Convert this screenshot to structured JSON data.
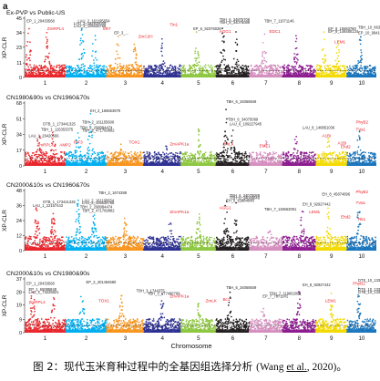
{
  "panel_letter": "a",
  "x_axis_title": "Chromosome",
  "y_axis_label": "XP-CLR",
  "caption": {
    "prefix": "图 2：现代玉米育种过程中的全基因组选择分析",
    "citation_open": "(Wang ",
    "citation_etal": "et al.",
    "citation_close": ", 2020)。"
  },
  "colors": {
    "chromosomes": [
      "#e8262b",
      "#00aeef",
      "#f7941d",
      "#2e3192",
      "#8dc63f",
      "#231f20",
      "#d58fbf",
      "#8c1d8f",
      "#f3d900",
      "#1a75bc"
    ],
    "gene_label": "#ed1c24",
    "snp_label": "#231f20",
    "threshold": "#231f20"
  },
  "chart_data": [
    {
      "type": "scatter",
      "title": "Ex-PVP vs Public-US",
      "ylabel": "XP-CLR",
      "ylim": [
        0,
        45
      ],
      "yticks": [
        0,
        11,
        23,
        34,
        45
      ],
      "x": [
        "1",
        "2",
        "3",
        "4",
        "5",
        "6",
        "7",
        "8",
        "9",
        "10"
      ],
      "threshold": 5,
      "peaks": [
        {
          "chrom": 1,
          "pos": 0.1,
          "value": 40
        },
        {
          "chrom": 1,
          "pos": 0.55,
          "value": 35
        },
        {
          "chrom": 2,
          "pos": 0.4,
          "value": 39
        },
        {
          "chrom": 2,
          "pos": 0.7,
          "value": 35
        },
        {
          "chrom": 3,
          "pos": 0.3,
          "value": 32
        },
        {
          "chrom": 3,
          "pos": 0.75,
          "value": 28
        },
        {
          "chrom": 4,
          "pos": 0.5,
          "value": 30
        },
        {
          "chrom": 5,
          "pos": 0.45,
          "value": 36
        },
        {
          "chrom": 6,
          "pos": 0.2,
          "value": 43
        },
        {
          "chrom": 6,
          "pos": 0.6,
          "value": 40
        },
        {
          "chrom": 7,
          "pos": 0.45,
          "value": 38
        },
        {
          "chrom": 8,
          "pos": 0.4,
          "value": 34
        },
        {
          "chrom": 9,
          "pos": 0.25,
          "value": 36
        },
        {
          "chrom": 9,
          "pos": 0.7,
          "value": 30
        },
        {
          "chrom": 10,
          "pos": 0.45,
          "value": 37
        }
      ],
      "annotations": [
        {
          "text": "EP_1_20433568",
          "kind": "snp",
          "chrom": 1,
          "pos": 0.05,
          "value": 42
        },
        {
          "text": "ZmRPL4",
          "kind": "gene",
          "chrom": 1,
          "pos": 0.55,
          "value": 36
        },
        {
          "text": "LAU_2_161195654",
          "kind": "snp",
          "chrom": 2,
          "pos": 0.3,
          "value": 42
        },
        {
          "text": "LAU_2_122916048",
          "kind": "snp",
          "chrom": 2,
          "pos": 0.2,
          "value": 40
        },
        {
          "text": "LAU_2_105636768",
          "kind": "snp",
          "chrom": 2,
          "pos": 0.2,
          "value": 38
        },
        {
          "text": "SR7",
          "kind": "gene",
          "chrom": 2,
          "pos": 0.9,
          "value": 36
        },
        {
          "text": "EP_3_...",
          "kind": "snp",
          "chrom": 3,
          "pos": 0.2,
          "value": 33
        },
        {
          "text": "ZmC2H",
          "kind": "gene",
          "chrom": 3,
          "pos": 0.85,
          "value": 30
        },
        {
          "text": "Tin1",
          "kind": "gene",
          "chrom": 4,
          "pos": 0.7,
          "value": 39
        },
        {
          "text": "EP_5_92376028",
          "kind": "snp",
          "chrom": 5,
          "pos": 0.35,
          "value": 36
        },
        {
          "text": "TBH_6_34875708",
          "kind": "snp",
          "chrom": 6,
          "pos": 0.1,
          "value": 43
        },
        {
          "text": "TBH_6_34075089",
          "kind": "snp",
          "chrom": 6,
          "pos": 0.1,
          "value": 41
        },
        {
          "text": "AGG1",
          "kind": "gene",
          "chrom": 6,
          "pos": 0.1,
          "value": 34
        },
        {
          "text": "TBH_7_11071146",
          "kind": "snp",
          "chrom": 7,
          "pos": 0.45,
          "value": 42
        },
        {
          "text": "EDC1",
          "kind": "gene",
          "chrom": 7,
          "pos": 0.6,
          "value": 34
        },
        {
          "text": "EP_9_15583780",
          "kind": "snp",
          "chrom": 9,
          "pos": 0.4,
          "value": 36
        },
        {
          "text": "EP_9_148480134",
          "kind": "snp",
          "chrom": 9,
          "pos": 0.4,
          "value": 34
        },
        {
          "text": "LEM1",
          "kind": "gene",
          "chrom": 9,
          "pos": 0.6,
          "value": 26
        },
        {
          "text": "EP_10_99415895",
          "kind": "snp",
          "chrom": 10,
          "pos": 0.45,
          "value": 33
        },
        {
          "text": "TBH_10_86326622",
          "kind": "snp",
          "chrom": 10,
          "pos": 0.55,
          "value": 37
        }
      ]
    },
    {
      "type": "scatter",
      "title": "CN1980&90s vs CN1960&70s",
      "ylabel": "XP-CLR",
      "ylim": [
        0,
        68
      ],
      "yticks": [
        0,
        17,
        34,
        51,
        68
      ],
      "x": [
        "1",
        "2",
        "3",
        "4",
        "5",
        "6",
        "7",
        "8",
        "9",
        "10"
      ],
      "threshold": 8,
      "peaks": [
        {
          "chrom": 1,
          "pos": 0.35,
          "value": 42
        },
        {
          "chrom": 1,
          "pos": 0.7,
          "value": 38
        },
        {
          "chrom": 2,
          "pos": 0.3,
          "value": 48
        },
        {
          "chrom": 2,
          "pos": 0.6,
          "value": 58
        },
        {
          "chrom": 3,
          "pos": 0.4,
          "value": 25
        },
        {
          "chrom": 4,
          "pos": 0.6,
          "value": 22
        },
        {
          "chrom": 5,
          "pos": 0.5,
          "value": 42
        },
        {
          "chrom": 6,
          "pos": 0.3,
          "value": 66
        },
        {
          "chrom": 6,
          "pos": 0.5,
          "value": 45
        },
        {
          "chrom": 7,
          "pos": 0.5,
          "value": 30
        },
        {
          "chrom": 8,
          "pos": 0.4,
          "value": 35
        },
        {
          "chrom": 9,
          "pos": 0.4,
          "value": 30
        },
        {
          "chrom": 10,
          "pos": 0.4,
          "value": 44
        }
      ],
      "annotations": [
        {
          "text": "DTB_1_173441325",
          "kind": "snp",
          "chrom": 1,
          "pos": 0.45,
          "value": 44
        },
        {
          "text": "TBH_1_115353375",
          "kind": "snp",
          "chrom": 1,
          "pos": 0.4,
          "value": 38
        },
        {
          "text": "LAU_1_26420566",
          "kind": "snp",
          "chrom": 1,
          "pos": 0.1,
          "value": 31
        },
        {
          "text": "ZmRPL4",
          "kind": "gene",
          "chrom": 1,
          "pos": 0.3,
          "value": 21
        },
        {
          "text": "AMP2",
          "kind": "gene",
          "chrom": 1,
          "pos": 0.85,
          "value": 21
        },
        {
          "text": "EH_2_166653979",
          "kind": "snp",
          "chrom": 2,
          "pos": 0.6,
          "value": 58
        },
        {
          "text": "TBH_2_161155606",
          "kind": "snp",
          "chrom": 2,
          "pos": 0.4,
          "value": 46
        },
        {
          "text": "TBH_2_298084474",
          "kind": "snp",
          "chrom": 2,
          "pos": 0.35,
          "value": 40
        },
        {
          "text": "TBH_2_471769882",
          "kind": "snp",
          "chrom": 2,
          "pos": 0.4,
          "value": 37
        },
        {
          "text": "PIF3",
          "kind": "gene",
          "chrom": 2,
          "pos": 0.2,
          "value": 24
        },
        {
          "text": "TOX1",
          "kind": "gene",
          "chrom": 3,
          "pos": 0.6,
          "value": 24
        },
        {
          "text": "ZmAPK1a",
          "kind": "gene",
          "chrom": 4,
          "pos": 0.7,
          "value": 22
        },
        {
          "text": "TBH_6_34068849",
          "kind": "snp",
          "chrom": 6,
          "pos": 0.3,
          "value": 68
        },
        {
          "text": "TBH_6_34075089",
          "kind": "snp",
          "chrom": 6,
          "pos": 0.35,
          "value": 49
        },
        {
          "text": "LAU_6_109227945",
          "kind": "snp",
          "chrom": 6,
          "pos": 0.4,
          "value": 44
        },
        {
          "text": "ZmLK",
          "kind": "gene",
          "chrom": 6,
          "pos": 0.2,
          "value": 22
        },
        {
          "text": "EMT1",
          "kind": "gene",
          "chrom": 7,
          "pos": 0.3,
          "value": 20
        },
        {
          "text": "LAU_8_148851036",
          "kind": "snp",
          "chrom": 8,
          "pos": 0.6,
          "value": 40
        },
        {
          "text": "A1Bi",
          "kind": "gene",
          "chrom": 9,
          "pos": 0.2,
          "value": 31
        },
        {
          "text": "A1Bi",
          "kind": "gene",
          "chrom": 9,
          "pos": 0.7,
          "value": 23
        },
        {
          "text": "Ehd2",
          "kind": "gene",
          "chrom": 9,
          "pos": 0.8,
          "value": 19
        },
        {
          "text": "PhyB2",
          "kind": "gene",
          "chrom": 10,
          "pos": 0.3,
          "value": 46
        },
        {
          "text": "TVa1",
          "kind": "gene",
          "chrom": 10,
          "pos": 0.3,
          "value": 38
        }
      ]
    },
    {
      "type": "scatter",
      "title": "CN2000&10s vs CN1960&70s",
      "ylabel": "XP-CLR",
      "ylim": [
        0,
        48
      ],
      "yticks": [
        0,
        12,
        24,
        36,
        48
      ],
      "x": [
        "1",
        "2",
        "3",
        "4",
        "5",
        "6",
        "7",
        "8",
        "9",
        "10"
      ],
      "threshold": 6,
      "peaks": [
        {
          "chrom": 1,
          "pos": 0.3,
          "value": 38
        },
        {
          "chrom": 1,
          "pos": 0.7,
          "value": 33
        },
        {
          "chrom": 2,
          "pos": 0.3,
          "value": 42
        },
        {
          "chrom": 2,
          "pos": 0.7,
          "value": 36
        },
        {
          "chrom": 3,
          "pos": 0.5,
          "value": 28
        },
        {
          "chrom": 4,
          "pos": 0.7,
          "value": 26
        },
        {
          "chrom": 5,
          "pos": 0.5,
          "value": 38
        },
        {
          "chrom": 6,
          "pos": 0.3,
          "value": 46
        },
        {
          "chrom": 6,
          "pos": 0.6,
          "value": 40
        },
        {
          "chrom": 7,
          "pos": 0.6,
          "value": 34
        },
        {
          "chrom": 8,
          "pos": 0.6,
          "value": 42
        },
        {
          "chrom": 9,
          "pos": 0.4,
          "value": 38
        },
        {
          "chrom": 10,
          "pos": 0.4,
          "value": 44
        }
      ],
      "annotations": [
        {
          "text": "DTB_1_173441325",
          "kind": "snp",
          "chrom": 1,
          "pos": 0.45,
          "value": 38
        },
        {
          "text": "LAU_1_22157443",
          "kind": "snp",
          "chrom": 1,
          "pos": 0.2,
          "value": 35
        },
        {
          "text": "TBH_2_1674388",
          "kind": "snp",
          "chrom": 2,
          "pos": 0.8,
          "value": 45
        },
        {
          "text": "LAU_2_161195654",
          "kind": "snp",
          "chrom": 2,
          "pos": 0.4,
          "value": 39
        },
        {
          "text": "LAU_2_105636768",
          "kind": "snp",
          "chrom": 2,
          "pos": 0.4,
          "value": 37
        },
        {
          "text": "TBH_2_298084474",
          "kind": "snp",
          "chrom": 2,
          "pos": 0.35,
          "value": 34
        },
        {
          "text": "TBH_2_471769882",
          "kind": "snp",
          "chrom": 2,
          "pos": 0.4,
          "value": 31
        },
        {
          "text": "ZmAPK1a",
          "kind": "gene",
          "chrom": 4,
          "pos": 0.7,
          "value": 30
        },
        {
          "text": "TBH_6_34075089",
          "kind": "snp",
          "chrom": 6,
          "pos": 0.4,
          "value": 43
        },
        {
          "text": "TBH_6_34068849",
          "kind": "snp",
          "chrom": 6,
          "pos": 0.4,
          "value": 41
        },
        {
          "text": "EH_6_21984648",
          "kind": "snp",
          "chrom": 6,
          "pos": 0.3,
          "value": 39
        },
        {
          "text": "AGG1",
          "kind": "gene",
          "chrom": 6,
          "pos": 0.1,
          "value": 33
        },
        {
          "text": "TBH_7_119662091",
          "kind": "snp",
          "chrom": 7,
          "pos": 0.45,
          "value": 32
        },
        {
          "text": "EH_8_92927442",
          "kind": "snp",
          "chrom": 8,
          "pos": 0.6,
          "value": 36
        },
        {
          "text": "LEM1",
          "kind": "gene",
          "chrom": 8,
          "pos": 0.8,
          "value": 30
        },
        {
          "text": "EH_8_45874896",
          "kind": "snp",
          "chrom": 9,
          "pos": 0.2,
          "value": 44
        },
        {
          "text": "Ehd2",
          "kind": "gene",
          "chrom": 9,
          "pos": 0.8,
          "value": 26
        },
        {
          "text": "PhyB2",
          "kind": "gene",
          "chrom": 10,
          "pos": 0.3,
          "value": 46
        },
        {
          "text": "TVa1",
          "kind": "gene",
          "chrom": 10,
          "pos": 0.3,
          "value": 37
        },
        {
          "text": "Rk1",
          "kind": "gene",
          "chrom": 10,
          "pos": 0.5,
          "value": 24
        }
      ]
    },
    {
      "type": "scatter",
      "title": "CN2000&10s vs CN1980&90s",
      "ylabel": "XP-CLR",
      "ylim": [
        0,
        37
      ],
      "yticks": [
        0,
        9,
        19,
        28,
        37
      ],
      "x": [
        "1",
        "2",
        "3",
        "4",
        "5",
        "6",
        "7",
        "8",
        "9",
        "10"
      ],
      "threshold": 5,
      "peaks": [
        {
          "chrom": 1,
          "pos": 0.2,
          "value": 32
        },
        {
          "chrom": 1,
          "pos": 0.7,
          "value": 26
        },
        {
          "chrom": 2,
          "pos": 0.4,
          "value": 30
        },
        {
          "chrom": 3,
          "pos": 0.4,
          "value": 26
        },
        {
          "chrom": 4,
          "pos": 0.5,
          "value": 27
        },
        {
          "chrom": 5,
          "pos": 0.5,
          "value": 22
        },
        {
          "chrom": 6,
          "pos": 0.4,
          "value": 30
        },
        {
          "chrom": 7,
          "pos": 0.4,
          "value": 24
        },
        {
          "chrom": 8,
          "pos": 0.5,
          "value": 33
        },
        {
          "chrom": 9,
          "pos": 0.5,
          "value": 28
        },
        {
          "chrom": 10,
          "pos": 0.4,
          "value": 33
        }
      ],
      "annotations": [
        {
          "text": "EP_1_20433568",
          "kind": "snp",
          "chrom": 1,
          "pos": 0.05,
          "value": 33
        },
        {
          "text": "EP_1_65095848",
          "kind": "snp",
          "chrom": 1,
          "pos": 0.1,
          "value": 29
        },
        {
          "text": "LAU_1_73225821",
          "kind": "snp",
          "chrom": 1,
          "pos": 0.1,
          "value": 27
        },
        {
          "text": "ZmRPL4",
          "kind": "gene",
          "chrom": 1,
          "pos": 0.1,
          "value": 20
        },
        {
          "text": "EP_2_201494580",
          "kind": "snp",
          "chrom": 2,
          "pos": 0.5,
          "value": 34
        },
        {
          "text": "TOX1",
          "kind": "gene",
          "chrom": 2,
          "pos": 0.8,
          "value": 21
        },
        {
          "text": "TBH_3_1744375",
          "kind": "snp",
          "chrom": 3,
          "pos": 0.8,
          "value": 28
        },
        {
          "text": "TBH_3_177496769",
          "kind": "snp",
          "chrom": 4,
          "pos": 0.1,
          "value": 26
        },
        {
          "text": "ZmAPK1a",
          "kind": "gene",
          "chrom": 4,
          "pos": 0.7,
          "value": 24
        },
        {
          "text": "ZmLK",
          "kind": "gene",
          "chrom": 5,
          "pos": 0.7,
          "value": 21
        },
        {
          "text": "Bc1",
          "kind": "gene",
          "chrom": 6,
          "pos": 0.2,
          "value": 22
        },
        {
          "text": "TBH_6_34068849",
          "kind": "snp",
          "chrom": 6,
          "pos": 0.3,
          "value": 30
        },
        {
          "text": "EP_7_7871141",
          "kind": "snp",
          "chrom": 7,
          "pos": 0.4,
          "value": 24
        },
        {
          "text": "TBH_7_119662091",
          "kind": "snp",
          "chrom": 7,
          "pos": 0.6,
          "value": 26
        },
        {
          "text": "EH_8_92927442",
          "kind": "snp",
          "chrom": 8,
          "pos": 0.6,
          "value": 32
        },
        {
          "text": "LEM1",
          "kind": "gene",
          "chrom": 9,
          "pos": 0.3,
          "value": 21
        },
        {
          "text": "DTS_10_133659694",
          "kind": "snp",
          "chrom": 10,
          "pos": 0.5,
          "value": 35
        },
        {
          "text": "DTS_10_133530639",
          "kind": "snp",
          "chrom": 10,
          "pos": 0.5,
          "value": 29
        },
        {
          "text": "DTB_10_133470093",
          "kind": "snp",
          "chrom": 10,
          "pos": 0.5,
          "value": 27
        },
        {
          "text": "PhyB2",
          "kind": "gene",
          "chrom": 10,
          "pos": 0.2,
          "value": 33
        }
      ]
    }
  ]
}
